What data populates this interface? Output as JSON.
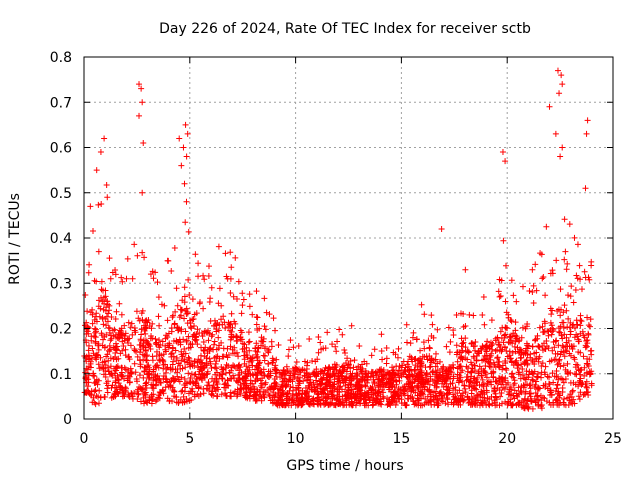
{
  "chart_data": {
    "type": "scatter",
    "title": "Day 226 of 2024, Rate Of TEC Index for receiver sctb",
    "xlabel": "GPS time / hours",
    "ylabel": "ROTI / TECUs",
    "xlim": [
      0,
      25
    ],
    "ylim": [
      0,
      0.8
    ],
    "x_ticks": [
      0,
      5,
      10,
      15,
      20,
      25
    ],
    "x_tick_labels": [
      "0",
      "5",
      "10",
      "15",
      "20",
      "25"
    ],
    "y_ticks": [
      0,
      0.1,
      0.2,
      0.3,
      0.4,
      0.5,
      0.6,
      0.7,
      0.8
    ],
    "y_tick_labels": [
      "0",
      "0.1",
      "0.2",
      "0.3",
      "0.4",
      "0.5",
      "0.6",
      "0.7",
      "0.8"
    ],
    "grid": true,
    "marker": "+",
    "color": "#ff0000",
    "series": [
      {
        "name": "ROTI",
        "envelope_x": [
          0,
          0.5,
          1,
          1.5,
          2,
          2.5,
          3,
          3.5,
          4,
          4.5,
          5,
          5.5,
          6,
          6.5,
          7,
          7.5,
          8,
          8.5,
          9,
          9.5,
          10,
          10.5,
          11,
          11.5,
          12,
          12.5,
          13,
          13.5,
          14,
          14.5,
          15,
          15.5,
          16,
          16.5,
          17,
          17.5,
          18,
          18.5,
          19,
          19.5,
          20,
          20.5,
          21,
          21.5,
          22,
          22.5,
          23,
          23.5,
          24
        ],
        "envelope_low": [
          0.06,
          0.03,
          0.04,
          0.05,
          0.05,
          0.04,
          0.03,
          0.04,
          0.04,
          0.03,
          0.04,
          0.05,
          0.05,
          0.05,
          0.05,
          0.05,
          0.04,
          0.04,
          0.03,
          0.03,
          0.03,
          0.03,
          0.03,
          0.03,
          0.03,
          0.03,
          0.03,
          0.03,
          0.03,
          0.03,
          0.03,
          0.03,
          0.03,
          0.03,
          0.03,
          0.03,
          0.03,
          0.03,
          0.03,
          0.03,
          0.03,
          0.03,
          0.02,
          0.02,
          0.03,
          0.03,
          0.03,
          0.04,
          0.06
        ],
        "envelope_high": [
          0.35,
          0.47,
          0.55,
          0.33,
          0.38,
          0.45,
          0.42,
          0.3,
          0.37,
          0.5,
          0.52,
          0.33,
          0.35,
          0.4,
          0.38,
          0.3,
          0.3,
          0.32,
          0.22,
          0.18,
          0.2,
          0.2,
          0.19,
          0.2,
          0.2,
          0.21,
          0.2,
          0.18,
          0.19,
          0.2,
          0.22,
          0.24,
          0.26,
          0.24,
          0.2,
          0.22,
          0.35,
          0.3,
          0.3,
          0.33,
          0.45,
          0.35,
          0.3,
          0.38,
          0.45,
          0.5,
          0.45,
          0.4,
          0.35
        ],
        "spikes": [
          {
            "x": 0.3,
            "y": 0.47
          },
          {
            "x": 0.6,
            "y": 0.55
          },
          {
            "x": 0.8,
            "y": 0.59
          },
          {
            "x": 0.95,
            "y": 0.62
          },
          {
            "x": 1.1,
            "y": 0.49
          },
          {
            "x": 2.6,
            "y": 0.74
          },
          {
            "x": 2.7,
            "y": 0.73
          },
          {
            "x": 2.75,
            "y": 0.7
          },
          {
            "x": 2.6,
            "y": 0.67
          },
          {
            "x": 2.8,
            "y": 0.61
          },
          {
            "x": 2.75,
            "y": 0.5
          },
          {
            "x": 4.5,
            "y": 0.62
          },
          {
            "x": 4.7,
            "y": 0.6
          },
          {
            "x": 4.8,
            "y": 0.65
          },
          {
            "x": 4.9,
            "y": 0.63
          },
          {
            "x": 4.85,
            "y": 0.58
          },
          {
            "x": 4.6,
            "y": 0.56
          },
          {
            "x": 4.75,
            "y": 0.52
          },
          {
            "x": 16.9,
            "y": 0.42
          },
          {
            "x": 19.8,
            "y": 0.59
          },
          {
            "x": 19.9,
            "y": 0.57
          },
          {
            "x": 22.0,
            "y": 0.69
          },
          {
            "x": 22.4,
            "y": 0.77
          },
          {
            "x": 22.55,
            "y": 0.76
          },
          {
            "x": 22.6,
            "y": 0.74
          },
          {
            "x": 22.45,
            "y": 0.72
          },
          {
            "x": 22.3,
            "y": 0.63
          },
          {
            "x": 22.6,
            "y": 0.6
          },
          {
            "x": 22.5,
            "y": 0.58
          },
          {
            "x": 23.8,
            "y": 0.66
          },
          {
            "x": 23.75,
            "y": 0.63
          },
          {
            "x": 23.7,
            "y": 0.51
          }
        ]
      }
    ]
  }
}
